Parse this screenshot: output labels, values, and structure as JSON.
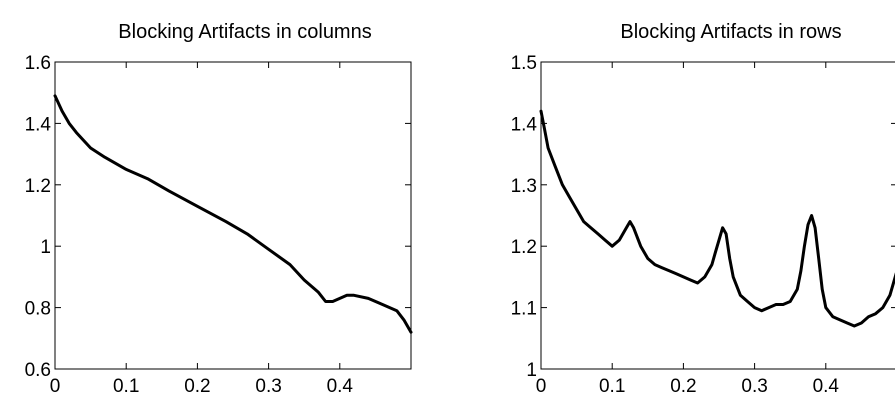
{
  "chart_data": [
    {
      "type": "line",
      "title": "Blocking Artifacts in columns",
      "xlabel": "",
      "ylabel": "",
      "xlim": [
        0,
        0.5
      ],
      "ylim": [
        0.6,
        1.6
      ],
      "xticks": [
        0,
        0.1,
        0.2,
        0.3,
        0.4
      ],
      "xtick_labels": [
        "0",
        "0.1",
        "0.2",
        "0.3",
        "0.4"
      ],
      "yticks": [
        0.6,
        0.8,
        1.0,
        1.2,
        1.4,
        1.6
      ],
      "ytick_labels": [
        "0.6",
        "0.8",
        "1",
        "1.2",
        "1.4",
        "1.6"
      ],
      "grid": false,
      "line_color": "#000000",
      "series": [
        {
          "x": [
            0,
            0.01,
            0.02,
            0.03,
            0.05,
            0.07,
            0.1,
            0.13,
            0.16,
            0.2,
            0.24,
            0.27,
            0.3,
            0.33,
            0.35,
            0.37,
            0.38,
            0.39,
            0.4,
            0.41,
            0.42,
            0.44,
            0.46,
            0.48,
            0.49,
            0.5
          ],
          "y": [
            1.49,
            1.44,
            1.4,
            1.37,
            1.32,
            1.29,
            1.25,
            1.22,
            1.18,
            1.13,
            1.08,
            1.04,
            0.99,
            0.94,
            0.89,
            0.85,
            0.82,
            0.82,
            0.83,
            0.84,
            0.84,
            0.83,
            0.81,
            0.79,
            0.76,
            0.72
          ]
        }
      ]
    },
    {
      "type": "line",
      "title": "Blocking Artifacts in rows",
      "xlabel": "",
      "ylabel": "",
      "xlim": [
        0,
        0.5
      ],
      "ylim": [
        1.0,
        1.5
      ],
      "xticks": [
        0,
        0.1,
        0.2,
        0.3,
        0.4
      ],
      "xtick_labels": [
        "0",
        "0.1",
        "0.2",
        "0.3",
        "0.4"
      ],
      "yticks": [
        1.0,
        1.1,
        1.2,
        1.3,
        1.4,
        1.5
      ],
      "ytick_labels": [
        "1",
        "1.1",
        "1.2",
        "1.3",
        "1.4",
        "1.5"
      ],
      "grid": false,
      "line_color": "#000000",
      "series": [
        {
          "x": [
            0,
            0.005,
            0.01,
            0.02,
            0.03,
            0.04,
            0.05,
            0.06,
            0.07,
            0.08,
            0.09,
            0.1,
            0.11,
            0.12,
            0.125,
            0.13,
            0.14,
            0.15,
            0.16,
            0.17,
            0.18,
            0.19,
            0.2,
            0.21,
            0.22,
            0.23,
            0.24,
            0.245,
            0.25,
            0.255,
            0.26,
            0.265,
            0.27,
            0.28,
            0.29,
            0.3,
            0.31,
            0.32,
            0.33,
            0.34,
            0.35,
            0.36,
            0.365,
            0.37,
            0.375,
            0.38,
            0.385,
            0.39,
            0.395,
            0.4,
            0.41,
            0.42,
            0.43,
            0.44,
            0.45,
            0.46,
            0.47,
            0.48,
            0.49,
            0.5
          ],
          "y": [
            1.42,
            1.39,
            1.36,
            1.33,
            1.3,
            1.28,
            1.26,
            1.24,
            1.23,
            1.22,
            1.21,
            1.2,
            1.21,
            1.23,
            1.24,
            1.23,
            1.2,
            1.18,
            1.17,
            1.165,
            1.16,
            1.155,
            1.15,
            1.145,
            1.14,
            1.15,
            1.17,
            1.19,
            1.21,
            1.23,
            1.22,
            1.18,
            1.15,
            1.12,
            1.11,
            1.1,
            1.095,
            1.1,
            1.105,
            1.105,
            1.11,
            1.13,
            1.16,
            1.2,
            1.235,
            1.25,
            1.23,
            1.18,
            1.13,
            1.1,
            1.085,
            1.08,
            1.075,
            1.07,
            1.075,
            1.085,
            1.09,
            1.1,
            1.12,
            1.16
          ]
        }
      ]
    }
  ]
}
